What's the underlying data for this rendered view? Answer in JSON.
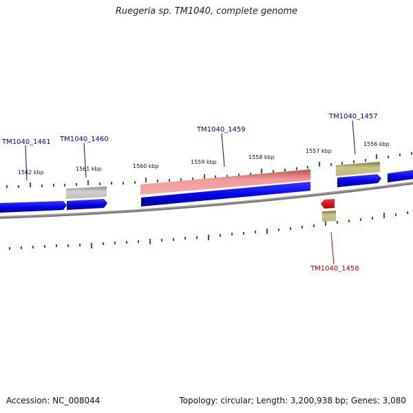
{
  "title": "Ruegeria sp. TM1040, complete genome",
  "footer": {
    "accession": "Accession: NC_008044",
    "summary": "Topology: circular; Length: 3,200,938 bp; Genes: 3,080"
  },
  "scale_labels": [
    "1562 kbp",
    "1561 kbp",
    "1560 kbp",
    "1559 kbp",
    "1558 kbp",
    "1557 kbp",
    "1556 kbp"
  ],
  "gene_labels": {
    "g1461": "TM1040_1461",
    "g1460": "TM1040_1460",
    "g1459": "TM1040_1459",
    "g1457": "TM1040_1457",
    "g1458": "TM1040_1458"
  },
  "colors": {
    "backbone": "#808080",
    "cds": "#0000ee",
    "gene_grey": "#a9a9a9",
    "gene_pink": "#e06666",
    "gene_olive": "#a39f5a",
    "gene_red": "#ee0000",
    "tick": "#1b7a1b",
    "label_blue": "#0000aa",
    "label_red": "#cc0000"
  }
}
